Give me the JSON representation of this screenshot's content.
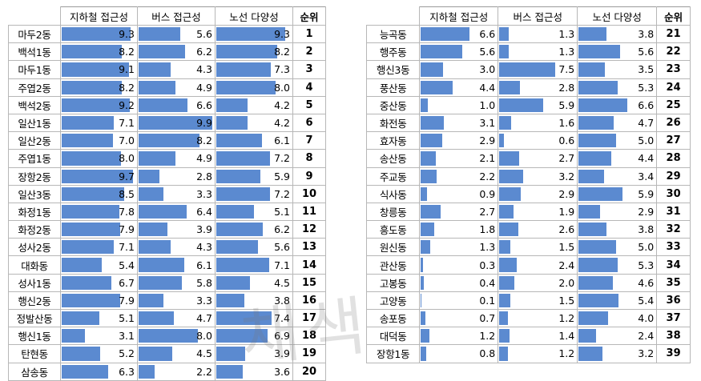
{
  "chart_data": {
    "type": "table",
    "columns": [
      "지하철 접근성",
      "버스 접근성",
      "노선 다양성",
      "순위"
    ],
    "max": {
      "subway": 10,
      "bus": 10,
      "route": 10
    },
    "left_rows": [
      {
        "name": "마두2동",
        "subway": 9.3,
        "bus": 5.6,
        "route": 9.3,
        "rank": 1
      },
      {
        "name": "백석1동",
        "subway": 8.2,
        "bus": 6.2,
        "route": 8.2,
        "rank": 2
      },
      {
        "name": "마두1동",
        "subway": 9.1,
        "bus": 4.3,
        "route": 7.3,
        "rank": 3
      },
      {
        "name": "주엽2동",
        "subway": 8.2,
        "bus": 4.9,
        "route": 8.0,
        "rank": 4
      },
      {
        "name": "백석2동",
        "subway": 9.2,
        "bus": 6.6,
        "route": 4.2,
        "rank": 5
      },
      {
        "name": "일산1동",
        "subway": 7.1,
        "bus": 9.9,
        "route": 4.2,
        "rank": 6
      },
      {
        "name": "일산2동",
        "subway": 7.0,
        "bus": 8.2,
        "route": 6.1,
        "rank": 7
      },
      {
        "name": "주엽1동",
        "subway": 8.0,
        "bus": 4.9,
        "route": 7.2,
        "rank": 8
      },
      {
        "name": "장항2동",
        "subway": 9.7,
        "bus": 2.8,
        "route": 5.9,
        "rank": 9
      },
      {
        "name": "일산3동",
        "subway": 8.5,
        "bus": 3.3,
        "route": 7.2,
        "rank": 10
      },
      {
        "name": "화정1동",
        "subway": 7.8,
        "bus": 6.4,
        "route": 5.1,
        "rank": 11
      },
      {
        "name": "화정2동",
        "subway": 7.9,
        "bus": 3.9,
        "route": 6.2,
        "rank": 12
      },
      {
        "name": "성사2동",
        "subway": 7.1,
        "bus": 4.3,
        "route": 5.6,
        "rank": 13
      },
      {
        "name": "대화동",
        "subway": 5.4,
        "bus": 6.1,
        "route": 7.1,
        "rank": 14
      },
      {
        "name": "성사1동",
        "subway": 6.7,
        "bus": 5.8,
        "route": 4.5,
        "rank": 15
      },
      {
        "name": "행신2동",
        "subway": 7.9,
        "bus": 3.3,
        "route": 3.8,
        "rank": 16
      },
      {
        "name": "정발산동",
        "subway": 5.1,
        "bus": 4.7,
        "route": 7.4,
        "rank": 17
      },
      {
        "name": "행신1동",
        "subway": 3.1,
        "bus": 8.0,
        "route": 6.9,
        "rank": 18
      },
      {
        "name": "탄현동",
        "subway": 5.2,
        "bus": 4.5,
        "route": 3.9,
        "rank": 19
      },
      {
        "name": "삼송동",
        "subway": 6.3,
        "bus": 2.2,
        "route": 3.6,
        "rank": 20
      }
    ],
    "right_rows": [
      {
        "name": "능곡동",
        "subway": 6.6,
        "bus": 1.3,
        "route": 3.8,
        "rank": 21
      },
      {
        "name": "행주동",
        "subway": 5.6,
        "bus": 1.3,
        "route": 5.6,
        "rank": 22
      },
      {
        "name": "행신3동",
        "subway": 3.0,
        "bus": 7.5,
        "route": 3.5,
        "rank": 23
      },
      {
        "name": "풍산동",
        "subway": 4.4,
        "bus": 2.8,
        "route": 5.3,
        "rank": 24
      },
      {
        "name": "중산동",
        "subway": 1.0,
        "bus": 5.9,
        "route": 6.6,
        "rank": 25
      },
      {
        "name": "화전동",
        "subway": 3.1,
        "bus": 1.6,
        "route": 4.7,
        "rank": 26
      },
      {
        "name": "효자동",
        "subway": 2.9,
        "bus": 0.6,
        "route": 5.0,
        "rank": 27
      },
      {
        "name": "송산동",
        "subway": 2.1,
        "bus": 2.7,
        "route": 4.4,
        "rank": 28
      },
      {
        "name": "주교동",
        "subway": 2.2,
        "bus": 3.2,
        "route": 3.4,
        "rank": 29
      },
      {
        "name": "식사동",
        "subway": 0.9,
        "bus": 2.9,
        "route": 5.9,
        "rank": 30
      },
      {
        "name": "창릉동",
        "subway": 2.7,
        "bus": 1.9,
        "route": 2.9,
        "rank": 31
      },
      {
        "name": "흥도동",
        "subway": 1.8,
        "bus": 2.6,
        "route": 3.8,
        "rank": 32
      },
      {
        "name": "원신동",
        "subway": 1.3,
        "bus": 1.5,
        "route": 5.0,
        "rank": 33
      },
      {
        "name": "관산동",
        "subway": 0.3,
        "bus": 2.4,
        "route": 5.3,
        "rank": 34
      },
      {
        "name": "고봉동",
        "subway": 0.4,
        "bus": 2.0,
        "route": 4.6,
        "rank": 35
      },
      {
        "name": "고양동",
        "subway": 0.1,
        "bus": 1.5,
        "route": 5.4,
        "rank": 36
      },
      {
        "name": "송포동",
        "subway": 0.7,
        "bus": 1.2,
        "route": 4.0,
        "rank": 37
      },
      {
        "name": "대덕동",
        "subway": 1.2,
        "bus": 1.4,
        "route": 2.4,
        "rank": 38
      },
      {
        "name": "장항1동",
        "subway": 0.8,
        "bus": 1.2,
        "route": 3.2,
        "rank": 39
      }
    ],
    "bar_color": "#5b8ad0"
  },
  "watermark_text": "채색"
}
